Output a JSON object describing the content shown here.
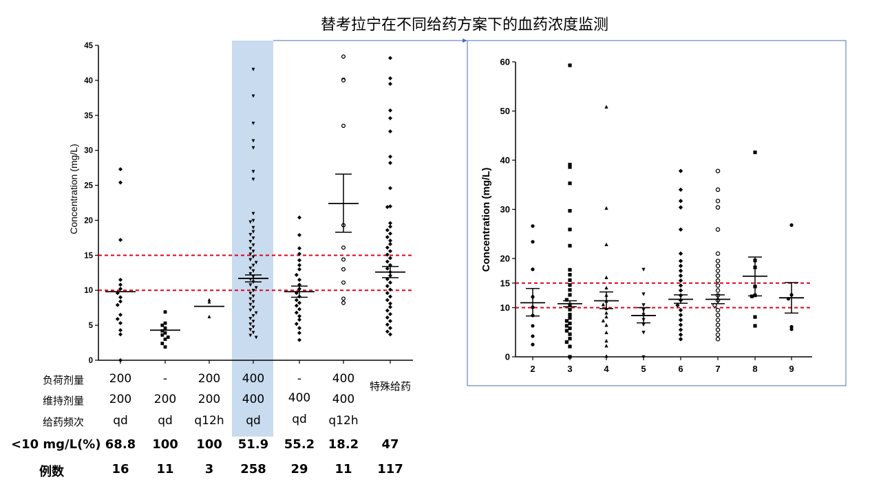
{
  "title": "替考拉宁在不同给药方案下的血药浓度监测",
  "left_chart": {
    "ylabel": "Concentration (mg/L)",
    "yticks": [
      "45",
      "40",
      "35",
      "30",
      "25",
      "20",
      "15",
      "10",
      "5",
      "0"
    ],
    "groups": [
      {
        "loading": "200",
        "maintenance": "200",
        "frequency": "qd",
        "pct": "68.8",
        "n": "16"
      },
      {
        "loading": "-",
        "maintenance": "200",
        "frequency": "qd",
        "pct": "100",
        "n": "11"
      },
      {
        "loading": "200",
        "maintenance": "200",
        "frequency": "q12h",
        "pct": "100",
        "n": "3"
      },
      {
        "loading": "400",
        "maintenance": "400",
        "frequency": "qd",
        "pct": "51.9",
        "n": "258"
      },
      {
        "loading": "-",
        "maintenance": "400",
        "frequency": "qd",
        "pct": "55.2",
        "n": "29"
      },
      {
        "loading": "400",
        "maintenance": "400",
        "frequency": "q12h",
        "pct": "18.2",
        "n": "11"
      },
      {
        "loading": "特殊给药",
        "maintenance": "",
        "frequency": "",
        "pct": "47",
        "n": "117"
      }
    ],
    "row_labels": {
      "loading": "负荷剂量",
      "maintenance": "维持剂量",
      "frequency": "给药频次",
      "pct": "<10 mg/L(%)",
      "n": "例数"
    }
  },
  "right_chart": {
    "ylabel": "Concentration (mg/L)",
    "yticks": [
      "60",
      "50",
      "40",
      "30",
      "20",
      "15",
      "10",
      "0"
    ],
    "xticks": [
      "2",
      "3",
      "4",
      "5",
      "6",
      "7",
      "8",
      "9"
    ]
  },
  "colors": {
    "highlight": "#c9dbee",
    "ref_line": "#e0001b",
    "frame": "#4a6fb4"
  },
  "chart_data": [
    {
      "type": "scatter",
      "ylabel": "Concentration (mg/L)",
      "ylim": [
        0,
        45
      ],
      "reference_lines": [
        10,
        15
      ],
      "categories": [
        "200/200/qd",
        "-/200/qd",
        "200/200/q12h",
        "400/400/qd",
        "-/400/qd",
        "400/400/q12h",
        "特殊给药"
      ],
      "means": [
        9.8,
        4.3,
        7.7,
        11.7,
        9.8,
        22.4,
        12.6
      ],
      "error_bars": [
        null,
        null,
        null,
        [
          11.2,
          12.2
        ],
        [
          9.0,
          10.6
        ],
        [
          18.3,
          26.6
        ],
        [
          11.8,
          13.4
        ]
      ],
      "points": [
        [
          27.3,
          25.4,
          17.2,
          11.5,
          10.8,
          10.2,
          9.6,
          9.0,
          8.4,
          7.9,
          6.5,
          5.9,
          5.3,
          4.3,
          3.7,
          0
        ],
        [
          6.9,
          5.3,
          5.0,
          4.6,
          4.2,
          3.9,
          3.6,
          3.3,
          3.0,
          2.4,
          1.9
        ],
        [
          8.6,
          8.3,
          6.2
        ],
        [
          41.6,
          37.8,
          33.9,
          31.4,
          30.4,
          27.0,
          25.9,
          21.0,
          20.0,
          19.8,
          19.0,
          18.4,
          18.0,
          17.5,
          17.0,
          16.5,
          16.0,
          15.6,
          15.2,
          14.8,
          14.4,
          14.0,
          13.6,
          13.2,
          12.8,
          12.4,
          12.0,
          11.6,
          11.2,
          10.8,
          10.4,
          10.0,
          9.6,
          9.2,
          8.8,
          8.4,
          8.0,
          7.6,
          7.2,
          6.8,
          6.4,
          6.0,
          5.6,
          5.2,
          4.8,
          4.4,
          4.0,
          3.6,
          3.3
        ],
        [
          20.4,
          17.9,
          16.0,
          15.2,
          14.3,
          13.6,
          13.0,
          12.2,
          11.5,
          10.8,
          10.2,
          9.6,
          9.1,
          8.6,
          8.2,
          7.8,
          7.3,
          6.8,
          6.3,
          5.8,
          5.2,
          4.6,
          3.9,
          2.9
        ],
        [
          43.4,
          40.1,
          40.0,
          33.5,
          19.3,
          16.1,
          14.4,
          13.0,
          11.1,
          8.8,
          8.2
        ],
        [
          43.2,
          40.3,
          39.5,
          35.7,
          34.6,
          32.7,
          29.1,
          28.2,
          24.6,
          22.0,
          21.9,
          19.6,
          19.1,
          18.6,
          18.1,
          17.6,
          17.1,
          16.6,
          16.1,
          15.6,
          15.1,
          14.6,
          14.1,
          13.6,
          13.1,
          12.6,
          12.1,
          11.6,
          11.1,
          10.6,
          10.1,
          9.6,
          9.1,
          8.6,
          8.1,
          7.6,
          7.1,
          6.6,
          6.1,
          5.6,
          5.1,
          4.6,
          4.1,
          3.7
        ]
      ]
    },
    {
      "type": "scatter",
      "ylabel": "Concentration (mg/L)",
      "ylim": [
        0,
        60
      ],
      "reference_lines": [
        10,
        15
      ],
      "categories": [
        "2",
        "3",
        "4",
        "5",
        "6",
        "7",
        "8",
        "9"
      ],
      "means": [
        11.0,
        10.8,
        11.4,
        8.4,
        11.7,
        11.7,
        16.4,
        12.0
      ],
      "error_bars": [
        [
          8.3,
          13.9
        ],
        [
          10.2,
          11.4
        ],
        [
          9.8,
          13.2
        ],
        [
          6.9,
          10.0
        ],
        [
          10.9,
          12.6
        ],
        [
          10.8,
          12.6
        ],
        [
          12.4,
          20.3
        ],
        [
          8.9,
          15.1
        ]
      ],
      "points": [
        [
          26.6,
          23.4,
          17.8,
          12.2,
          10.1,
          8.4,
          6.3,
          4.2,
          2.5
        ],
        [
          59.3,
          39.1,
          38.6,
          35.3,
          29.7,
          25.9,
          22.6,
          17.7,
          16.7,
          15.6,
          14.6,
          13.6,
          12.6,
          11.6,
          10.6,
          9.6,
          8.6,
          7.9,
          7.3,
          6.8,
          6.3,
          5.8,
          5.3,
          4.6,
          3.7,
          3.0,
          2.1,
          0
        ],
        [
          50.8,
          30.2,
          22.8,
          16.1,
          14.0,
          12.5,
          11.3,
          10.6,
          9.8,
          8.9,
          8.1,
          7.3,
          6.4,
          4.9,
          3.2,
          2.2,
          0.1
        ],
        [
          17.8,
          12.8,
          10.6,
          9.6,
          8.6,
          7.6,
          6.6,
          5.0,
          0
        ],
        [
          37.8,
          34.0,
          31.7,
          30.4,
          25.9,
          21.0,
          19.5,
          18.5,
          17.5,
          16.5,
          15.5,
          14.5,
          13.5,
          12.5,
          11.5,
          10.5,
          9.5,
          8.5,
          7.5,
          6.5,
          5.5,
          4.5,
          3.6
        ],
        [
          37.8,
          34.0,
          31.7,
          30.4,
          25.9,
          21.0,
          19.5,
          18.5,
          17.5,
          16.5,
          15.5,
          14.5,
          13.5,
          12.5,
          11.5,
          10.5,
          9.5,
          8.5,
          7.5,
          6.5,
          5.5,
          4.5,
          3.6
        ],
        [
          41.6,
          19.6,
          18.2,
          14.3,
          12.5,
          12.3,
          8.1,
          6.3
        ],
        [
          26.8,
          12.6,
          11.8,
          6.1,
          5.6
        ]
      ]
    }
  ]
}
